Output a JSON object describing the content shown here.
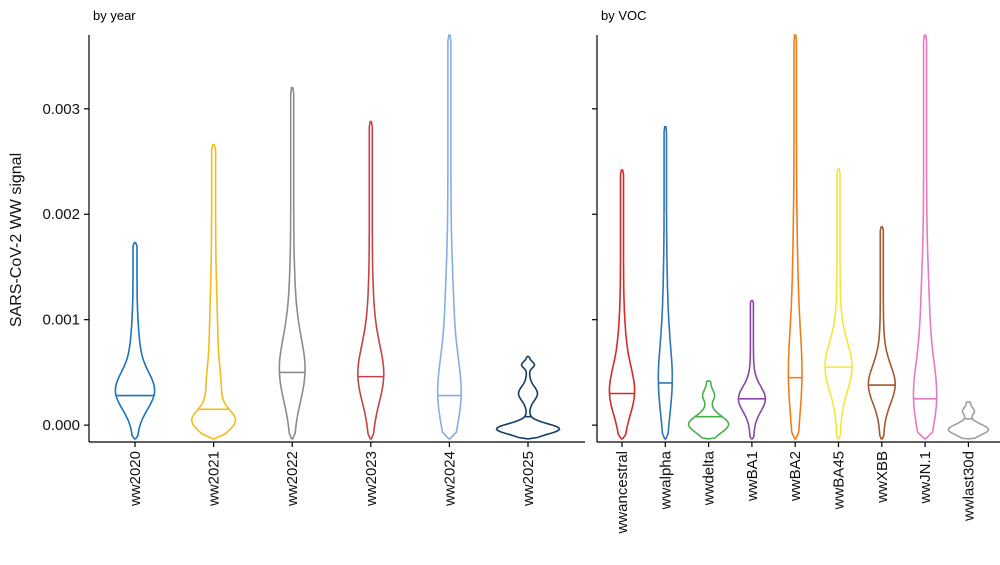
{
  "chart_data": {
    "type": "violin",
    "ylabel": "SARS-CoV-2 WW signal",
    "ylim": [
      -0.00016,
      0.0037
    ],
    "yticks": [
      0.0,
      0.001,
      0.002,
      0.003
    ],
    "ytick_labels": [
      "0.000",
      "0.001",
      "0.002",
      "0.003"
    ],
    "panels": [
      {
        "title": "by year",
        "series": [
          {
            "name": "ww2020",
            "color": "#1b73b9",
            "max": 0.00173,
            "median": 0.00028,
            "shape": "medium"
          },
          {
            "name": "ww2021",
            "color": "#f2bc1a",
            "max": 0.00266,
            "median": 0.00015,
            "shape": "bottom"
          },
          {
            "name": "ww2022",
            "color": "#8c8c8c",
            "max": 0.0032,
            "median": 0.0005,
            "shape": "slim"
          },
          {
            "name": "ww2023",
            "color": "#c44444",
            "max": 0.00288,
            "median": 0.00046,
            "shape": "slim"
          },
          {
            "name": "ww2024",
            "color": "#86aee6",
            "max": 0.0037,
            "median": 0.00028,
            "shape": "slim"
          },
          {
            "name": "ww2025",
            "color": "#113f66",
            "max": 0.00065,
            "median": 8e-05,
            "shape": "flat"
          }
        ]
      },
      {
        "title": "by VOC",
        "series": [
          {
            "name": "wwancestral",
            "color": "#d62a2a",
            "max": 0.00242,
            "median": 0.0003,
            "shape": "slim"
          },
          {
            "name": "wwalpha",
            "color": "#2f74b3",
            "max": 0.00283,
            "median": 0.0004,
            "shape": "thin"
          },
          {
            "name": "wwdelta",
            "color": "#48b04a",
            "max": 0.00042,
            "median": 8e-05,
            "shape": "blob"
          },
          {
            "name": "wwBA1",
            "color": "#8e44a8",
            "max": 0.00118,
            "median": 0.00025,
            "shape": "slim"
          },
          {
            "name": "wwBA2",
            "color": "#f07d1a",
            "max": 0.0037,
            "median": 0.00045,
            "shape": "thin"
          },
          {
            "name": "wwBA45",
            "color": "#f5e73a",
            "max": 0.00243,
            "median": 0.00055,
            "shape": "slim"
          },
          {
            "name": "wwXBB",
            "color": "#a25a2e",
            "max": 0.00188,
            "median": 0.00038,
            "shape": "slim"
          },
          {
            "name": "wwJN.1",
            "color": "#e67bbd",
            "max": 0.0037,
            "median": 0.00025,
            "shape": "slim"
          },
          {
            "name": "wwlast30d",
            "color": "#a0a0a0",
            "max": 0.00022,
            "median": 6e-05,
            "shape": "blob"
          }
        ]
      }
    ]
  }
}
